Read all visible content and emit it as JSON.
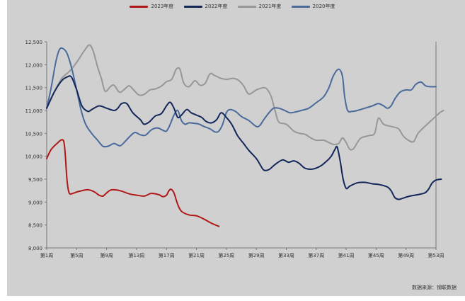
{
  "chart_data": {
    "type": "line",
    "title": "",
    "xlabel": "",
    "ylabel": "",
    "ylim": [
      8000,
      12500
    ],
    "yticks": [
      8000,
      8500,
      9000,
      9500,
      10000,
      10500,
      11000,
      11500,
      12000,
      12500
    ],
    "ytick_labels": [
      "8,000",
      "8,500",
      "9,000",
      "9,500",
      "10,000",
      "10,500",
      "11,000",
      "11,500",
      "12,000",
      "12,500"
    ],
    "xlim": [
      1,
      53
    ],
    "xticks": [
      1,
      5,
      9,
      13,
      17,
      21,
      25,
      29,
      33,
      37,
      41,
      45,
      49,
      53
    ],
    "xtick_labels": [
      "第1周",
      "第5周",
      "第9周",
      "第13周",
      "第17周",
      "第21周",
      "第25周",
      "第29周",
      "第33周",
      "第37周",
      "第41周",
      "第45周",
      "第49周",
      "第53周"
    ],
    "grid": false,
    "legend": "top-center",
    "series": [
      {
        "name": "2023年度",
        "color": "#b01818",
        "points": [
          [
            1,
            9950
          ],
          [
            1.6,
            10150
          ],
          [
            2.5,
            10300
          ],
          [
            3,
            10360
          ],
          [
            3.3,
            10310
          ],
          [
            3.5,
            10000
          ],
          [
            3.7,
            9500
          ],
          [
            4,
            9200
          ],
          [
            4.5,
            9190
          ],
          [
            5,
            9220
          ],
          [
            6,
            9260
          ],
          [
            6.5,
            9270
          ],
          [
            7,
            9250
          ],
          [
            7.5,
            9210
          ],
          [
            8,
            9150
          ],
          [
            8.5,
            9130
          ],
          [
            9,
            9200
          ],
          [
            9.5,
            9260
          ],
          [
            10,
            9270
          ],
          [
            11,
            9240
          ],
          [
            12,
            9180
          ],
          [
            13,
            9150
          ],
          [
            14,
            9130
          ],
          [
            14.5,
            9160
          ],
          [
            15,
            9190
          ],
          [
            16,
            9160
          ],
          [
            16.5,
            9120
          ],
          [
            17,
            9150
          ],
          [
            17.3,
            9240
          ],
          [
            17.6,
            9280
          ],
          [
            18,
            9200
          ],
          [
            18.5,
            8950
          ],
          [
            19,
            8800
          ],
          [
            20,
            8720
          ],
          [
            21,
            8700
          ],
          [
            22,
            8630
          ],
          [
            23,
            8540
          ],
          [
            24,
            8470
          ]
        ]
      },
      {
        "name": "2022年度",
        "color": "#12265a",
        "points": [
          [
            1,
            11050
          ],
          [
            2,
            11400
          ],
          [
            3,
            11650
          ],
          [
            3.7,
            11730
          ],
          [
            4.3,
            11730
          ],
          [
            5,
            11450
          ],
          [
            5.7,
            11100
          ],
          [
            6.5,
            10980
          ],
          [
            7,
            11020
          ],
          [
            8,
            11100
          ],
          [
            9,
            11050
          ],
          [
            10,
            11000
          ],
          [
            10.5,
            11050
          ],
          [
            11,
            11150
          ],
          [
            11.7,
            11150
          ],
          [
            12.5,
            10950
          ],
          [
            13.5,
            10800
          ],
          [
            14,
            10700
          ],
          [
            14.7,
            10750
          ],
          [
            15.5,
            10880
          ],
          [
            16.3,
            10930
          ],
          [
            17,
            11100
          ],
          [
            17.5,
            11180
          ],
          [
            18,
            11050
          ],
          [
            18.5,
            10850
          ],
          [
            19,
            10900
          ],
          [
            19.7,
            11020
          ],
          [
            20.3,
            10950
          ],
          [
            21,
            10900
          ],
          [
            21.7,
            10850
          ],
          [
            22.3,
            10760
          ],
          [
            23,
            10730
          ],
          [
            23.7,
            10800
          ],
          [
            24.3,
            10950
          ],
          [
            25,
            10850
          ],
          [
            25.7,
            10700
          ],
          [
            26.5,
            10450
          ],
          [
            27.2,
            10300
          ],
          [
            28,
            10130
          ],
          [
            29,
            9950
          ],
          [
            29.5,
            9820
          ],
          [
            30,
            9700
          ],
          [
            30.7,
            9710
          ],
          [
            31.5,
            9820
          ],
          [
            32.5,
            9920
          ],
          [
            33.3,
            9870
          ],
          [
            34,
            9900
          ],
          [
            34.7,
            9850
          ],
          [
            35.5,
            9740
          ],
          [
            36.5,
            9720
          ],
          [
            37.5,
            9780
          ],
          [
            38.3,
            9880
          ],
          [
            39,
            10000
          ],
          [
            39.5,
            10150
          ],
          [
            39.8,
            10200
          ],
          [
            40.2,
            9900
          ],
          [
            40.6,
            9500
          ],
          [
            41,
            9300
          ],
          [
            41.5,
            9350
          ],
          [
            42.5,
            9420
          ],
          [
            43.5,
            9430
          ],
          [
            44.5,
            9400
          ],
          [
            45.5,
            9380
          ],
          [
            46.5,
            9330
          ],
          [
            47,
            9250
          ],
          [
            47.5,
            9100
          ],
          [
            48,
            9060
          ],
          [
            48.5,
            9080
          ],
          [
            49.5,
            9130
          ],
          [
            50.5,
            9160
          ],
          [
            51.5,
            9200
          ],
          [
            52,
            9280
          ],
          [
            52.5,
            9420
          ],
          [
            53,
            9480
          ],
          [
            53.7,
            9500
          ]
        ]
      },
      {
        "name": "2021年度",
        "color": "#979797",
        "points": [
          [
            1,
            11050
          ],
          [
            2,
            11400
          ],
          [
            3,
            11700
          ],
          [
            4,
            11850
          ],
          [
            5,
            12050
          ],
          [
            6,
            12300
          ],
          [
            6.7,
            12430
          ],
          [
            7.2,
            12300
          ],
          [
            7.8,
            11950
          ],
          [
            8.3,
            11700
          ],
          [
            8.8,
            11420
          ],
          [
            9.5,
            11520
          ],
          [
            10,
            11550
          ],
          [
            10.7,
            11400
          ],
          [
            11.3,
            11450
          ],
          [
            12,
            11540
          ],
          [
            12.6,
            11450
          ],
          [
            13.3,
            11340
          ],
          [
            14,
            11350
          ],
          [
            14.8,
            11450
          ],
          [
            15.5,
            11470
          ],
          [
            16.3,
            11530
          ],
          [
            17,
            11630
          ],
          [
            17.7,
            11680
          ],
          [
            18.3,
            11900
          ],
          [
            18.8,
            11900
          ],
          [
            19.3,
            11600
          ],
          [
            20,
            11520
          ],
          [
            20.8,
            11650
          ],
          [
            21.5,
            11550
          ],
          [
            22.2,
            11600
          ],
          [
            22.8,
            11800
          ],
          [
            23.5,
            11760
          ],
          [
            24.3,
            11700
          ],
          [
            25,
            11680
          ],
          [
            26,
            11700
          ],
          [
            26.7,
            11650
          ],
          [
            27.3,
            11540
          ],
          [
            28,
            11360
          ],
          [
            29,
            11450
          ],
          [
            30,
            11500
          ],
          [
            30.5,
            11450
          ],
          [
            31,
            11300
          ],
          [
            31.5,
            11000
          ],
          [
            32,
            10750
          ],
          [
            33,
            10700
          ],
          [
            34,
            10550
          ],
          [
            34.8,
            10500
          ],
          [
            35.5,
            10480
          ],
          [
            36.3,
            10400
          ],
          [
            37,
            10350
          ],
          [
            38,
            10350
          ],
          [
            38.7,
            10300
          ],
          [
            39.3,
            10260
          ],
          [
            40,
            10280
          ],
          [
            40.5,
            10400
          ],
          [
            41,
            10300
          ],
          [
            41.5,
            10150
          ],
          [
            42,
            10170
          ],
          [
            42.5,
            10300
          ],
          [
            43,
            10400
          ],
          [
            44,
            10450
          ],
          [
            44.8,
            10500
          ],
          [
            45.3,
            10830
          ],
          [
            46,
            10700
          ],
          [
            47,
            10650
          ],
          [
            48,
            10600
          ],
          [
            48.6,
            10450
          ],
          [
            49.3,
            10350
          ],
          [
            50,
            10320
          ],
          [
            50.6,
            10500
          ],
          [
            51.5,
            10650
          ],
          [
            52.5,
            10800
          ],
          [
            53.5,
            10950
          ],
          [
            54,
            11000
          ]
        ]
      },
      {
        "name": "2020年度",
        "color": "#4a6a9c",
        "points": [
          [
            1,
            11050
          ],
          [
            1.6,
            11500
          ],
          [
            2.2,
            12050
          ],
          [
            2.7,
            12330
          ],
          [
            3.2,
            12350
          ],
          [
            3.7,
            12250
          ],
          [
            4.3,
            11950
          ],
          [
            5,
            11450
          ],
          [
            5.6,
            11000
          ],
          [
            6.2,
            10700
          ],
          [
            7,
            10500
          ],
          [
            7.8,
            10350
          ],
          [
            8.5,
            10220
          ],
          [
            9.2,
            10220
          ],
          [
            10,
            10280
          ],
          [
            10.8,
            10230
          ],
          [
            11.5,
            10330
          ],
          [
            12.2,
            10450
          ],
          [
            12.8,
            10520
          ],
          [
            13.5,
            10470
          ],
          [
            14.2,
            10460
          ],
          [
            15,
            10580
          ],
          [
            15.8,
            10620
          ],
          [
            16.5,
            10570
          ],
          [
            17,
            10550
          ],
          [
            17.5,
            10700
          ],
          [
            18,
            10900
          ],
          [
            18.5,
            11000
          ],
          [
            19,
            10780
          ],
          [
            19.5,
            10700
          ],
          [
            20,
            10730
          ],
          [
            20.7,
            10720
          ],
          [
            21.4,
            10700
          ],
          [
            22,
            10650
          ],
          [
            22.8,
            10600
          ],
          [
            23.5,
            10530
          ],
          [
            24,
            10550
          ],
          [
            24.5,
            10700
          ],
          [
            25,
            10950
          ],
          [
            25.5,
            11020
          ],
          [
            26.3,
            10970
          ],
          [
            27,
            10870
          ],
          [
            28,
            10780
          ],
          [
            29,
            10650
          ],
          [
            29.5,
            10680
          ],
          [
            30,
            10800
          ],
          [
            30.7,
            10950
          ],
          [
            31.3,
            11050
          ],
          [
            32,
            11050
          ],
          [
            32.8,
            11000
          ],
          [
            33.5,
            10950
          ],
          [
            34.3,
            10970
          ],
          [
            35,
            11000
          ],
          [
            36,
            11050
          ],
          [
            37,
            11170
          ],
          [
            38,
            11300
          ],
          [
            38.7,
            11500
          ],
          [
            39.3,
            11760
          ],
          [
            40,
            11900
          ],
          [
            40.5,
            11750
          ],
          [
            40.8,
            11300
          ],
          [
            41.2,
            11000
          ],
          [
            41.8,
            10980
          ],
          [
            42.5,
            11000
          ],
          [
            43.5,
            11050
          ],
          [
            44.5,
            11100
          ],
          [
            45.3,
            11150
          ],
          [
            46,
            11100
          ],
          [
            46.5,
            11050
          ],
          [
            47,
            11100
          ],
          [
            47.5,
            11250
          ],
          [
            48.2,
            11400
          ],
          [
            49,
            11450
          ],
          [
            49.7,
            11450
          ],
          [
            50.3,
            11570
          ],
          [
            51,
            11620
          ],
          [
            51.6,
            11540
          ],
          [
            52.3,
            11520
          ],
          [
            53,
            11520
          ]
        ]
      }
    ]
  },
  "source_note": "数据来源：钢联数据"
}
